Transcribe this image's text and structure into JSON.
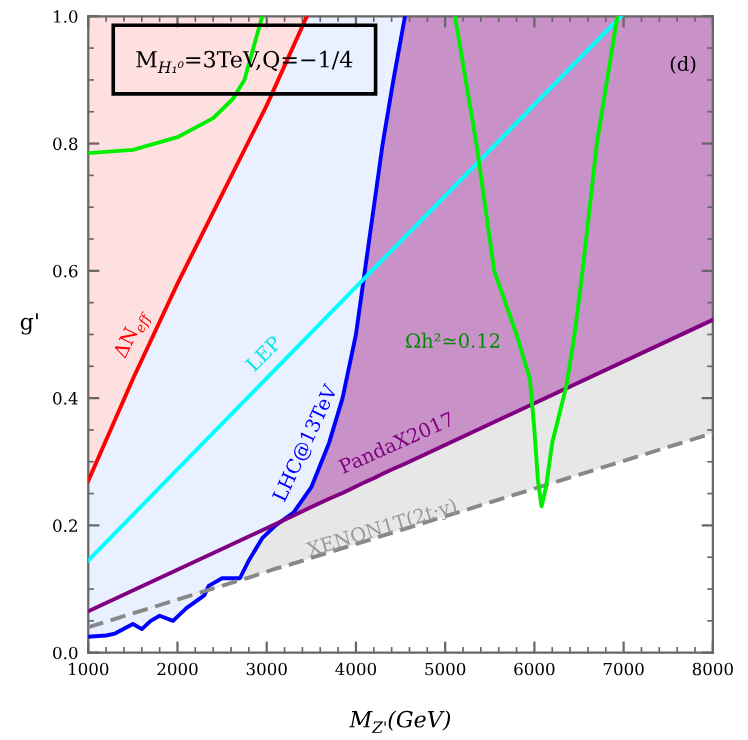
{
  "chart_data": {
    "type": "line",
    "xlabel": "M$_{Z'}$(GeV)",
    "ylabel": "g'",
    "xlim": [
      1000,
      8000
    ],
    "ylim": [
      0,
      1.0
    ],
    "xticks": [
      1000,
      2000,
      3000,
      4000,
      5000,
      6000,
      7000,
      8000
    ],
    "yticks": [
      {
        "value": 0,
        "label": "0.0"
      },
      {
        "value": 0.2,
        "label": "0.2"
      },
      {
        "value": 0.4,
        "label": "0.4"
      },
      {
        "value": 0.6,
        "label": "0.6"
      },
      {
        "value": 0.8,
        "label": "0.8"
      },
      {
        "value": 1.0,
        "label": "1.0"
      }
    ],
    "grid": false,
    "legend": false,
    "series": [
      {
        "color": "#0000ff",
        "x": [
          1000,
          1200,
          1300,
          1500,
          1600,
          1700,
          1800,
          1950,
          2100,
          2300,
          2350,
          2500,
          2700,
          2800,
          2950,
          3100,
          3300,
          3500,
          3700,
          3850,
          4000,
          4100,
          4200,
          4300,
          4420,
          4550
        ],
        "values": [
          0.025,
          0.027,
          0.03,
          0.045,
          0.037,
          0.05,
          0.058,
          0.05,
          0.07,
          0.09,
          0.105,
          0.117,
          0.117,
          0.145,
          0.18,
          0.2,
          0.22,
          0.26,
          0.33,
          0.4,
          0.5,
          0.6,
          0.7,
          0.8,
          0.9,
          1.0
        ],
        "lower": [
          0.025,
          0.027,
          0.03,
          0.045,
          0.037,
          0.05,
          0.058,
          0.05,
          0.07,
          0.09,
          0.105,
          0.117,
          0.117,
          0.145,
          0.18,
          0.2,
          0.22,
          0.26,
          0.33,
          0.4,
          0.5,
          0.6,
          0.7,
          0.8,
          0.9,
          1.0
        ],
        "upper": [
          1,
          1,
          1,
          1,
          1,
          1,
          1,
          1,
          1,
          1,
          1,
          1,
          1,
          1,
          1,
          1,
          1,
          1,
          1,
          1,
          1,
          1,
          1,
          1,
          1,
          1
        ]
      },
      {
        "color": "#ff0000",
        "x": [
          1000,
          1500,
          2000,
          2500,
          3000,
          3450
        ],
        "values": [
          0.27,
          0.43,
          0.58,
          0.72,
          0.86,
          1.0
        ],
        "lower": [
          0.27,
          0.43,
          0.58,
          0.72,
          0.86,
          1.0
        ],
        "upper": [
          1,
          1,
          1,
          1,
          1,
          1
        ]
      },
      {
        "color": "#00ffff",
        "x": [
          1000,
          6970
        ],
        "values": [
          0.145,
          1.0
        ]
      },
      {
        "color": "#800080",
        "x": [
          1000,
          3250,
          3500,
          3700,
          3850,
          4000,
          4100,
          4200,
          4300,
          4420,
          4550,
          8000
        ],
        "values": [
          0.065,
          0.212,
          0.229,
          0.242,
          0.251,
          0.261,
          0.268,
          0.274,
          0.281,
          0.289,
          0.297,
          0.523
        ],
        "lower": [
          0.065,
          0.212,
          0.229,
          0.242,
          0.251,
          0.261,
          0.268,
          0.274,
          0.281,
          0.289,
          0.297,
          0.523
        ],
        "upper": [
          0.065,
          0.215,
          0.26,
          0.33,
          0.4,
          0.5,
          0.6,
          0.7,
          0.8,
          0.9,
          1.0,
          1.0
        ]
      },
      {
        "color": "#888888",
        "line_style": "dashed",
        "x": [
          1000,
          2750,
          2800,
          2950,
          3100,
          3250,
          8000
        ],
        "values": [
          0.04,
          0.116,
          0.118,
          0.125,
          0.132,
          0.138,
          0.345
        ],
        "lower": [
          0.04,
          0.116,
          0.118,
          0.125,
          0.132,
          0.138,
          0.345
        ],
        "upper": [
          0.04,
          0.12,
          0.145,
          0.18,
          0.2,
          0.212,
          0.523
        ]
      },
      {
        "color": "#00ee00",
        "x": [
          1000,
          1500,
          2000,
          2400,
          2620,
          2750,
          2850,
          2950
        ],
        "values": [
          0.785,
          0.79,
          0.81,
          0.84,
          0.87,
          0.9,
          0.95,
          1.0
        ]
      },
      {
        "color": "#00ee00",
        "x": [
          5110,
          5350,
          5550,
          5800,
          5950,
          6000,
          6040,
          6080,
          6130,
          6200,
          6360,
          6450,
          6540,
          6700,
          6930
        ],
        "values": [
          1.0,
          0.8,
          0.6,
          0.5,
          0.43,
          0.35,
          0.27,
          0.23,
          0.26,
          0.33,
          0.42,
          0.5,
          0.6,
          0.8,
          1.0
        ]
      }
    ],
    "annotations": [
      "M$_{H₁⁰}$=3TeV,Q=−1/4",
      "(d)",
      "ΔN$_{eff}$",
      "LEP",
      "LHC@13TeV",
      "Ωh²≃0.12",
      "PandaX2017",
      "XENON1T(2t·y)"
    ]
  }
}
